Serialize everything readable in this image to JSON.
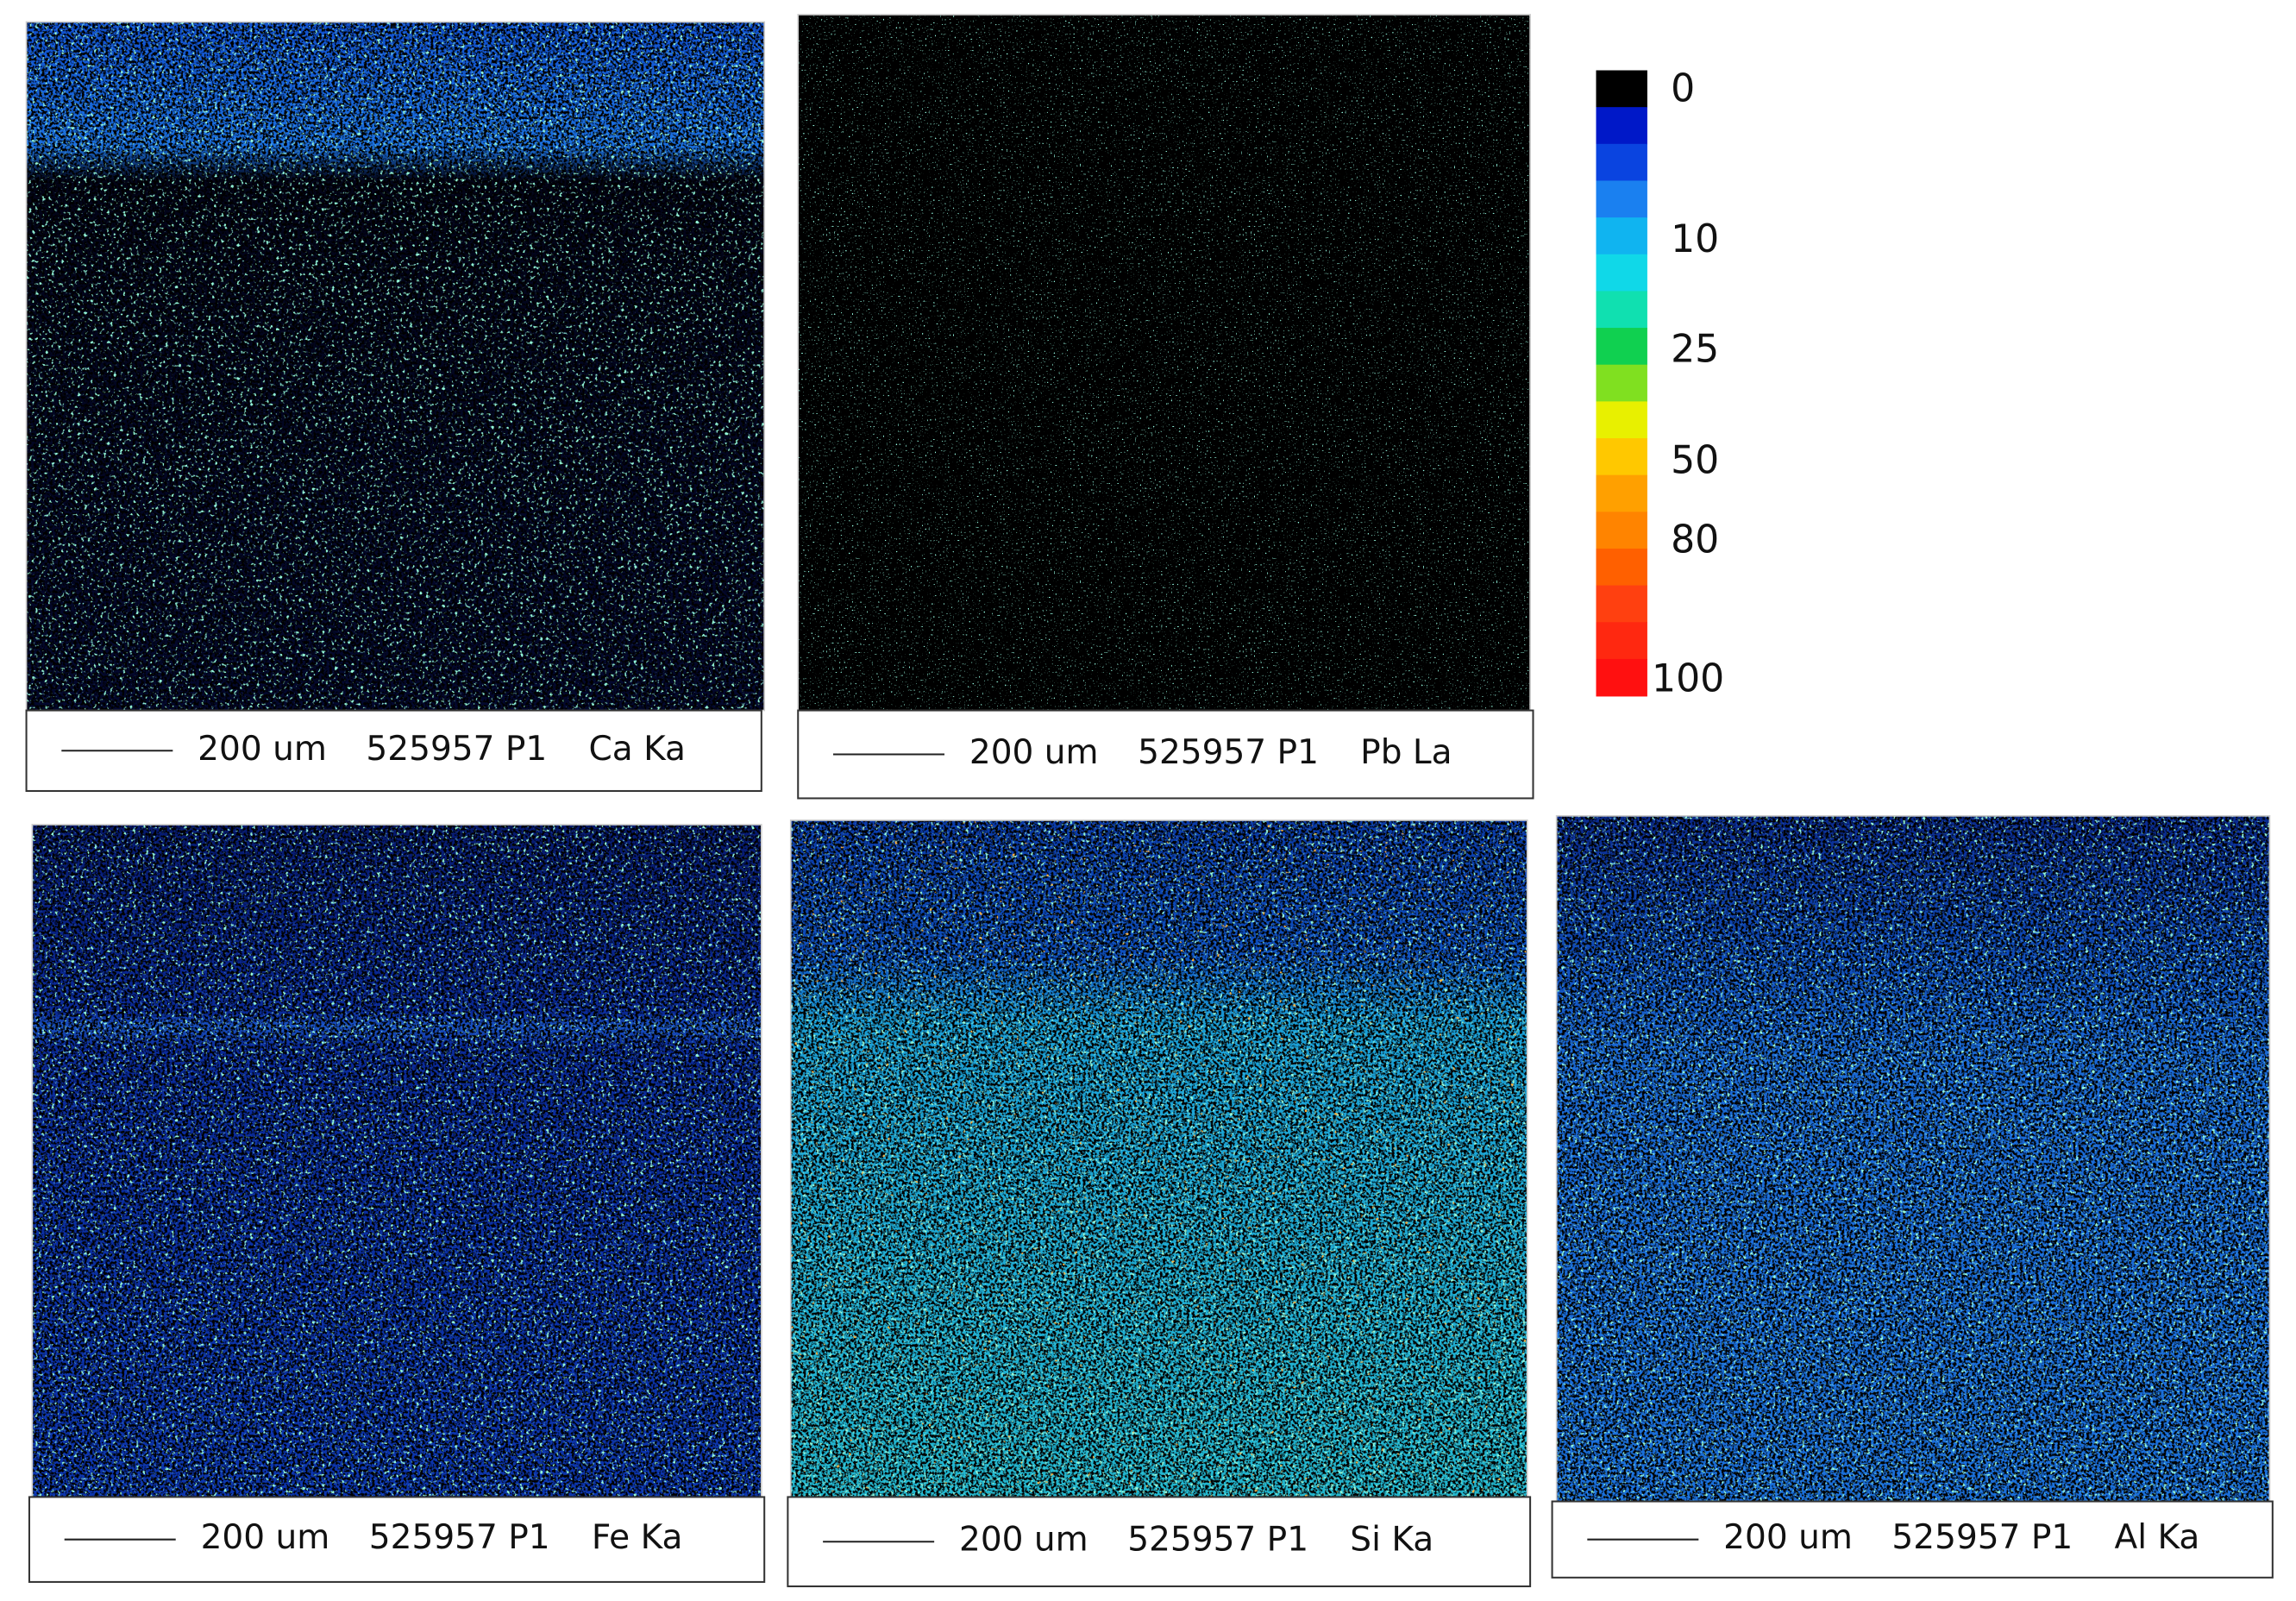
{
  "colorbar": {
    "ticks": [
      0,
      10,
      25,
      50,
      80,
      100
    ]
  },
  "panels": [
    {
      "scale": "200 um",
      "sample": "525957 P1",
      "element": "Ca Ka"
    },
    {
      "scale": "200 um",
      "sample": "525957 P1",
      "element": "Pb La"
    },
    {
      "scale": "200 um",
      "sample": "525957 P1",
      "element": "Fe Ka"
    },
    {
      "scale": "200 um",
      "sample": "525957 P1",
      "element": "Si Ka"
    },
    {
      "scale": "200 um",
      "sample": "525957 P1",
      "element": "Al Ka"
    }
  ]
}
